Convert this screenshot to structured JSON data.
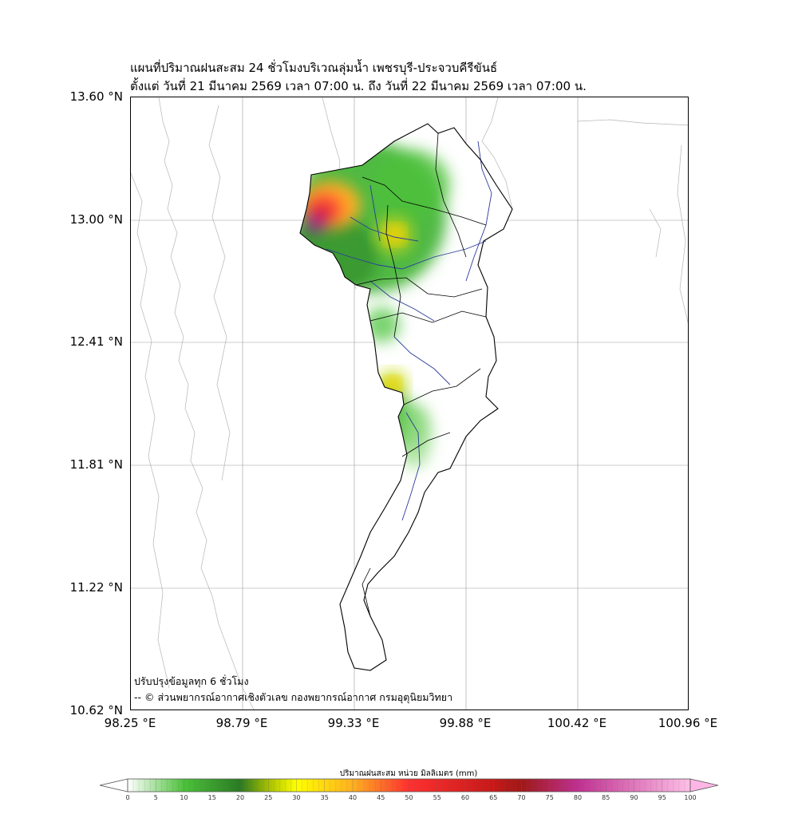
{
  "title": {
    "line1": "แผนที่ปริมาณฝนสะสม 24 ชั่วโมงบริเวณลุ่มน้ำ เพชรบุรี-ประจวบคีรีขันธ์",
    "line2": "ตั้งแต่ วันที่ 21 มีนาคม 2569 เวลา 07:00 น. ถึง วันที่ 22 มีนาคม 2569 เวลา 07:00 น."
  },
  "axes": {
    "y_labels": [
      "13.60 °N",
      "13.00 °N",
      "12.41 °N",
      "11.81 °N",
      "11.22 °N",
      "10.62 °N"
    ],
    "x_labels": [
      "98.25 °E",
      "98.79 °E",
      "99.33 °E",
      "99.88 °E",
      "100.42 °E",
      "100.96 °E"
    ],
    "lat_range": [
      10.62,
      13.6
    ],
    "lon_range": [
      98.25,
      100.96
    ],
    "grid": true
  },
  "notes": {
    "update": "ปรับปรุงข้อมูลทุก 6 ชั่วโมง",
    "credit": "-- © ส่วนพยากรณ์อากาศเชิงตัวเลข กองพยากรณ์อากาศ กรมอุตุนิยมวิทยา"
  },
  "colorbar": {
    "title": "ปริมาณฝนสะสม หน่วย มิลลิเมตร (mm)",
    "ticks": [
      "0",
      "5",
      "10",
      "15",
      "20",
      "25",
      "30",
      "35",
      "40",
      "45",
      "50",
      "55",
      "60",
      "65",
      "70",
      "75",
      "80",
      "85",
      "90",
      "95",
      "100"
    ],
    "min": 0,
    "max": 100,
    "colors": [
      {
        "v": 0,
        "c": "#ffffff"
      },
      {
        "v": 10,
        "c": "#4cc23a"
      },
      {
        "v": 20,
        "c": "#2a7a22"
      },
      {
        "v": 25,
        "c": "#a6c000"
      },
      {
        "v": 30,
        "c": "#ffff00"
      },
      {
        "v": 40,
        "c": "#ffb020"
      },
      {
        "v": 50,
        "c": "#ff3030"
      },
      {
        "v": 65,
        "c": "#c81818"
      },
      {
        "v": 70,
        "c": "#a01818"
      },
      {
        "v": 80,
        "c": "#c03090"
      },
      {
        "v": 100,
        "c": "#ffc0e8"
      }
    ]
  },
  "rain_cells": [
    {
      "lon": 99.11,
      "lat": 13.01,
      "mm": 55
    },
    {
      "lon": 99.08,
      "lat": 12.95,
      "mm": 75
    },
    {
      "lon": 99.18,
      "lat": 13.12,
      "mm": 35
    },
    {
      "lon": 99.52,
      "lat": 12.93,
      "mm": 32
    },
    {
      "lon": 99.44,
      "lat": 12.14,
      "mm": 30
    },
    {
      "lon": 99.38,
      "lat": 12.48,
      "mm": 15
    },
    {
      "lon": 99.4,
      "lat": 12.75,
      "mm": 14
    }
  ]
}
